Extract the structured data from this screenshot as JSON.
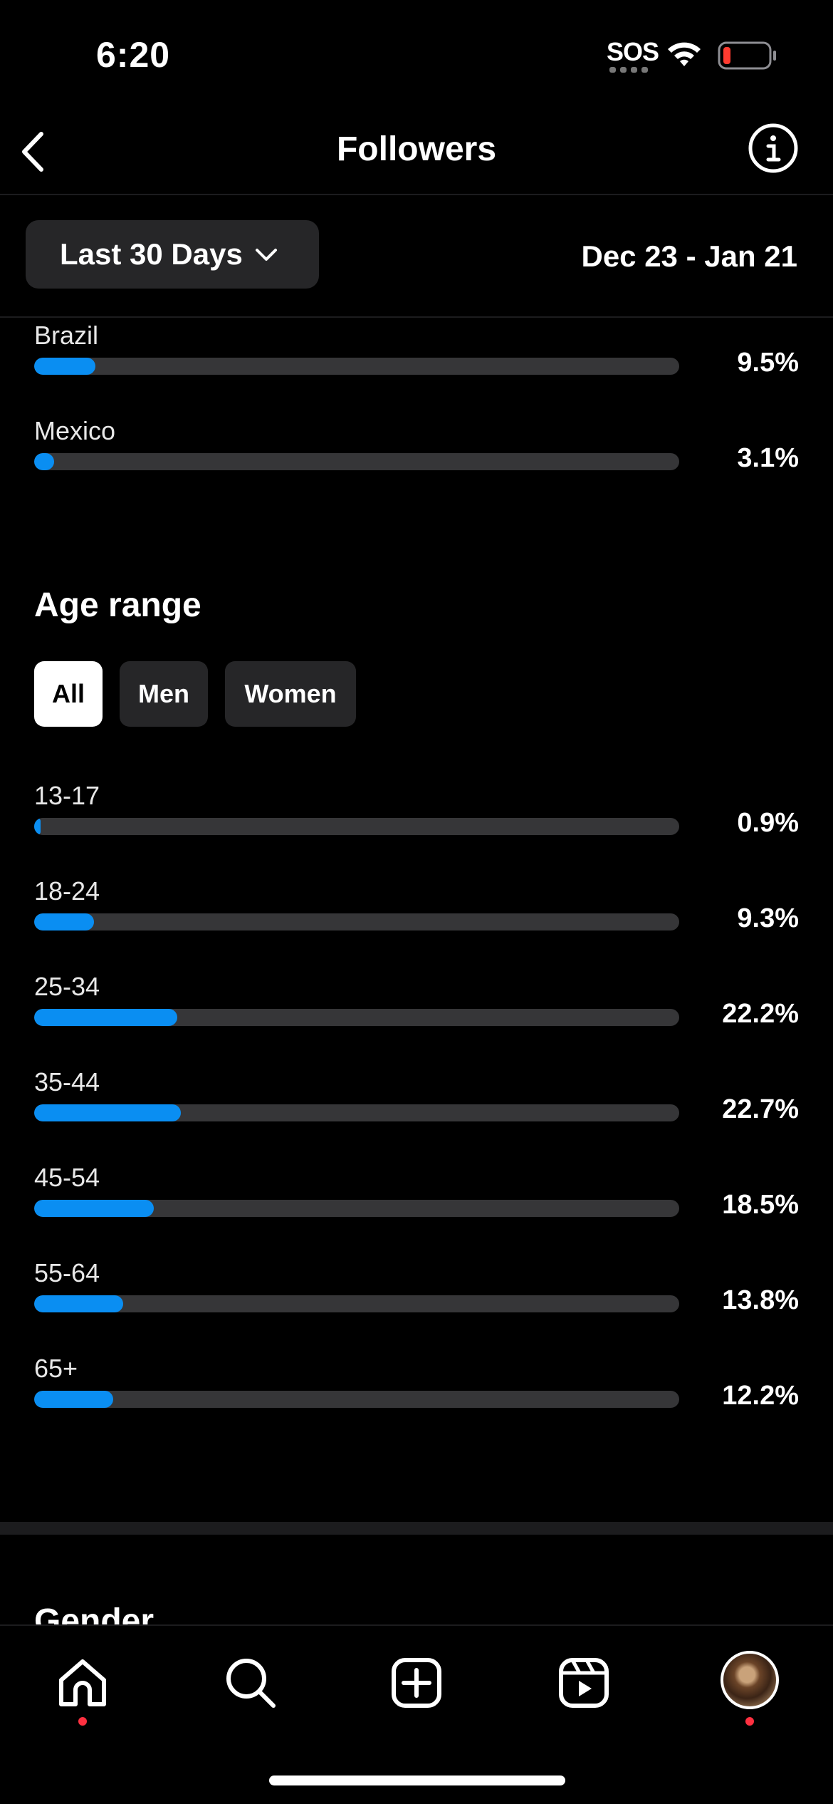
{
  "status": {
    "time": "6:20",
    "sos": "SOS",
    "battery_color": "#ff3b30"
  },
  "header": {
    "title": "Followers",
    "back_icon": "chevron-left-icon",
    "info_icon": "info-icon"
  },
  "filter": {
    "period": "Last 30 Days",
    "date_range": "Dec 23 - Jan 21"
  },
  "countries": [
    {
      "label": "Brazil",
      "value": "9.5%",
      "fraction": 0.095
    },
    {
      "label": "Mexico",
      "value": "3.1%",
      "fraction": 0.031
    }
  ],
  "age": {
    "title": "Age range",
    "tabs": [
      {
        "label": "All",
        "active": true
      },
      {
        "label": "Men",
        "active": false
      },
      {
        "label": "Women",
        "active": false
      }
    ],
    "rows": [
      {
        "label": "13-17",
        "value": "0.9%",
        "fraction": 0.009
      },
      {
        "label": "18-24",
        "value": "9.3%",
        "fraction": 0.093
      },
      {
        "label": "25-34",
        "value": "22.2%",
        "fraction": 0.222
      },
      {
        "label": "35-44",
        "value": "22.7%",
        "fraction": 0.227
      },
      {
        "label": "45-54",
        "value": "18.5%",
        "fraction": 0.185
      },
      {
        "label": "55-64",
        "value": "13.8%",
        "fraction": 0.138
      },
      {
        "label": "65+",
        "value": "12.2%",
        "fraction": 0.122
      }
    ]
  },
  "gender": {
    "title": "Gender"
  },
  "colors": {
    "accent": "#0a8ef2",
    "track": "#363638",
    "notification": "#ff3040"
  },
  "tab_bar": {
    "items": [
      "home-icon",
      "search-icon",
      "create-icon",
      "reels-icon",
      "profile-avatar"
    ]
  }
}
